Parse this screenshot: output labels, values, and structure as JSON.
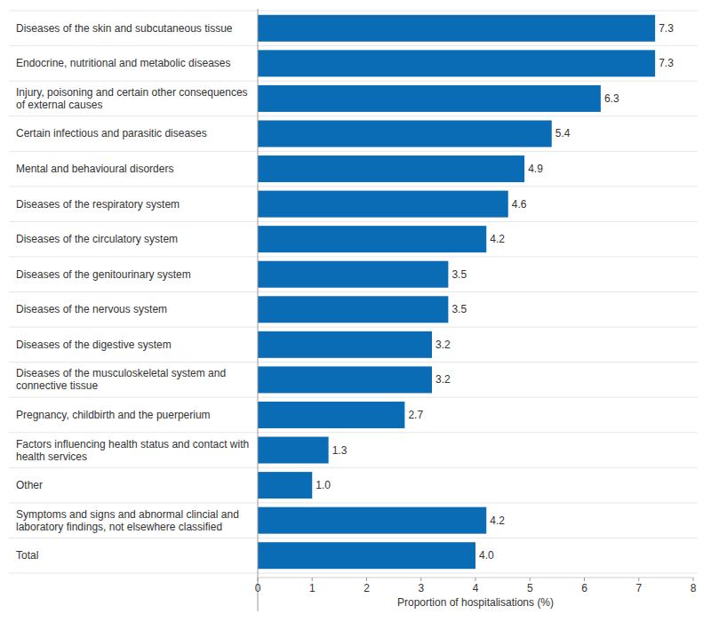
{
  "chart_data": {
    "type": "bar",
    "orientation": "horizontal",
    "x_label": "Proportion of hospitalisations (%)",
    "categories": [
      "Diseases of the skin and subcutaneous tissue",
      "Endocrine, nutritional and metabolic diseases",
      "Injury, poisoning and certain other consequences of external causes",
      "Certain infectious and parasitic diseases",
      "Mental and behavioural disorders",
      "Diseases of the respiratory system",
      "Diseases of the circulatory system",
      "Diseases of the genitourinary system",
      "Diseases of the nervous system",
      "Diseases of the digestive system",
      "Diseases of the musculoskeletal system and connective tissue",
      "Pregnancy, childbirth and the puerperium",
      "Factors influencing health status and contact with health services",
      "Other",
      "Symptoms and signs and abnormal clincial and laboratory findings, not elsewhere classified",
      "Total"
    ],
    "values": [
      7.3,
      7.3,
      6.3,
      5.4,
      4.9,
      4.6,
      4.2,
      3.5,
      3.5,
      3.2,
      3.2,
      2.7,
      1.3,
      1.0,
      4.2,
      4.0
    ],
    "value_labels": [
      "7.3",
      "7.3",
      "6.3",
      "5.4",
      "4.9",
      "4.6",
      "4.2",
      "3.5",
      "3.5",
      "3.2",
      "3.2",
      "2.7",
      "1.3",
      "1.0",
      "4.2",
      "4.0"
    ],
    "color": "#0a6cb4",
    "xlim": [
      0,
      8
    ],
    "xticks": [
      0,
      1,
      2,
      3,
      4,
      5,
      6,
      7,
      8
    ],
    "grid": false,
    "data_labels": true
  }
}
